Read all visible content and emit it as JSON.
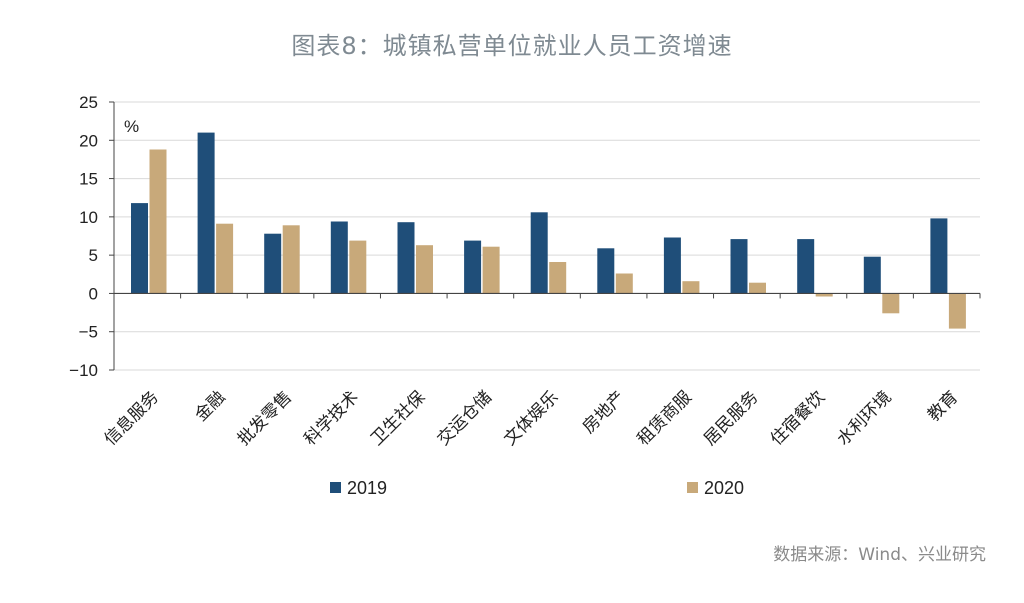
{
  "chart_data": {
    "type": "bar",
    "title": "图表8：城镇私营单位就业人员工资增速",
    "unit_label": "%",
    "categories": [
      "信息服务",
      "金融",
      "批发零售",
      "科学技术",
      "卫生社保",
      "交运仓储",
      "文体娱乐",
      "房地产",
      "租赁商服",
      "居民服务",
      "住宿餐饮",
      "水利环境",
      "教育"
    ],
    "series": [
      {
        "name": "2019",
        "color": "#1f4e79",
        "values": [
          11.8,
          21.0,
          7.8,
          9.4,
          9.3,
          6.9,
          10.6,
          5.9,
          7.3,
          7.1,
          7.1,
          4.8,
          9.8
        ]
      },
      {
        "name": "2020",
        "color": "#c8a97a",
        "values": [
          18.8,
          9.1,
          8.9,
          6.9,
          6.3,
          6.1,
          4.1,
          2.6,
          1.6,
          1.4,
          -0.4,
          -2.6,
          -4.6
        ]
      }
    ],
    "ylim": [
      -10,
      25
    ],
    "yticks": [
      25,
      20,
      15,
      10,
      5,
      0,
      -5,
      -10
    ],
    "ytick_labels": [
      "25",
      "20",
      "15",
      "10",
      "5",
      "0",
      "−5",
      "−10"
    ],
    "grid": true,
    "legend_position": "bottom"
  },
  "source": "数据来源：Wind、兴业研究"
}
